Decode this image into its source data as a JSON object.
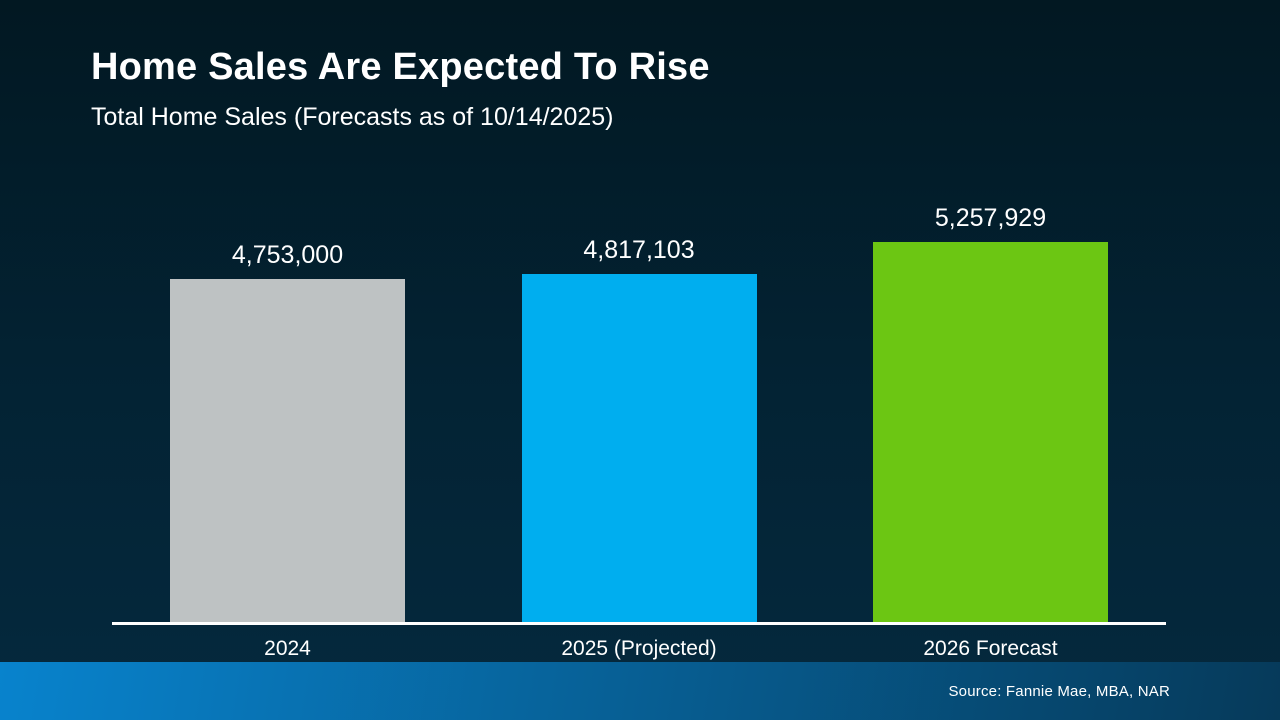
{
  "slide": {
    "title": "Home Sales Are Expected To Rise",
    "subtitle": "Total Home Sales (Forecasts as of 10/14/2025)",
    "source": "Source: Fannie Mae, MBA, NAR"
  },
  "chart_data": {
    "type": "bar",
    "title": "Home Sales Are Expected To Rise",
    "subtitle": "Total Home Sales (Forecasts as of 10/14/2025)",
    "categories": [
      "2024",
      "2025 (Projected)",
      "2026 Forecast"
    ],
    "values": [
      4753000,
      4817103,
      5257929
    ],
    "value_labels": [
      "4,753,000",
      "4,817,103",
      "5,257,929"
    ],
    "bar_colors": [
      "#bec2c3",
      "#00aeef",
      "#6cc613"
    ],
    "ylim": [
      0,
      5257929
    ],
    "baseline": 0,
    "grid": false,
    "legend": false,
    "xlabel": "",
    "ylabel": "",
    "source": "Source: Fannie Mae, MBA, NAR"
  },
  "colors": {
    "background_top": "#021822",
    "background_bottom": "#05293e",
    "footer_left": "#0883cd",
    "footer_right": "#063a5a",
    "axis_line": "#ffffff",
    "text": "#ffffff"
  }
}
